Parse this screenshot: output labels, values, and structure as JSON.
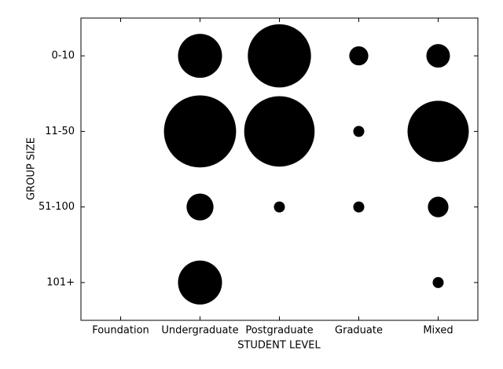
{
  "chart_data": {
    "type": "categorical-bubble",
    "xlabel": "STUDENT LEVEL",
    "ylabel": "GROUP SIZE",
    "categories": [
      "Foundation",
      "Undergraduate",
      "Postgraduate",
      "Graduate",
      "Mixed"
    ],
    "groups": [
      "0-10",
      "11-50",
      "51-100",
      "101+"
    ],
    "values": [
      [
        null,
        16,
        33,
        3,
        4.6
      ],
      [
        null,
        43,
        41,
        1,
        31
      ],
      [
        null,
        6,
        1,
        1,
        3.5
      ],
      [
        null,
        16,
        null,
        null,
        1
      ]
    ],
    "color": "#000000"
  }
}
